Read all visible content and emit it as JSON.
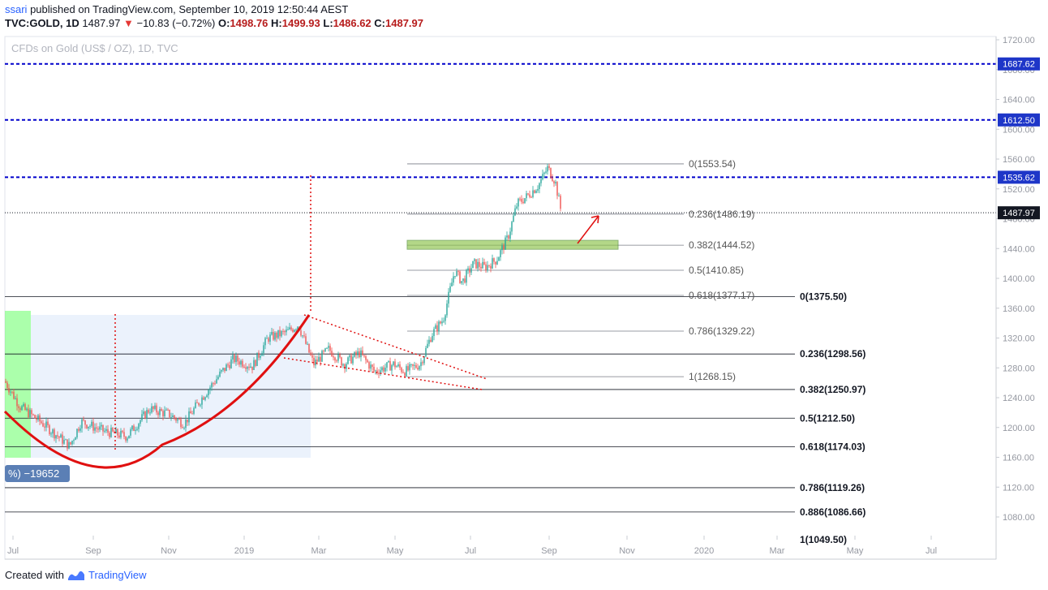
{
  "header": {
    "user": "ssari",
    "published": " published on TradingView.com, September 10, 2019 12:50:44 AEST",
    "symbol": "TVC:GOLD, 1D",
    "last": "1487.97",
    "change": "−10.83 (−0.72%)",
    "o_label": "O:",
    "o": "1498.76",
    "h_label": "H:",
    "h": "1499.93",
    "l_label": "L:",
    "l": "1486.62",
    "c_label": "C:",
    "c": "1487.97"
  },
  "footer": {
    "text": "Created with",
    "brand": "TradingView"
  },
  "chart_data": {
    "type": "candlestick",
    "watermark": "CFDs on Gold (US$ / OZ), 1D, TVC",
    "ylim": [
      1045,
      1727
    ],
    "y_ticks": [
      "1720.00",
      "1680.00",
      "1640.00",
      "1600.00",
      "1560.00",
      "1520.00",
      "1480.00",
      "1440.00",
      "1400.00",
      "1360.00",
      "1320.00",
      "1280.00",
      "1240.00",
      "1200.00",
      "1160.00",
      "1120.00",
      "1080.00"
    ],
    "x_ticks": [
      "Jul",
      "Sep",
      "Nov",
      "2019",
      "Mar",
      "May",
      "Jul",
      "Sep",
      "Nov",
      "2020",
      "Mar",
      "May",
      "Jul"
    ],
    "horizontal_levels": [
      {
        "price": 1687.62,
        "label": "1687.62",
        "style": "dashed-blue"
      },
      {
        "price": 1612.5,
        "label": "1612.50",
        "style": "dashed-blue"
      },
      {
        "price": 1535.62,
        "label": "1535.62",
        "style": "dashed-blue"
      },
      {
        "price": 1487.97,
        "label": "1487.97",
        "style": "dotted-black"
      }
    ],
    "fib_short": [
      {
        "label": "0(1553.54)",
        "price": 1553.54
      },
      {
        "label": "0.236(1486.19)",
        "price": 1486.19
      },
      {
        "label": "0.382(1444.52)",
        "price": 1444.52
      },
      {
        "label": "0.5(1410.85)",
        "price": 1410.85
      },
      {
        "label": "0.618(1377.17)",
        "price": 1377.17
      },
      {
        "label": "0.786(1329.22)",
        "price": 1329.22
      },
      {
        "label": "1(1268.15)",
        "price": 1268.15
      }
    ],
    "fib_long": [
      {
        "label": "0(1375.50)",
        "price": 1375.5
      },
      {
        "label": "0.236(1298.56)",
        "price": 1298.56
      },
      {
        "label": "0.382(1250.97)",
        "price": 1250.97
      },
      {
        "label": "0.5(1212.50)",
        "price": 1212.5
      },
      {
        "label": "0.618(1174.03)",
        "price": 1174.03
      },
      {
        "label": "0.786(1119.26)",
        "price": 1119.26
      },
      {
        "label": "0.886(1086.66)",
        "price": 1086.66
      }
    ],
    "fib_partial_label": "1(1049.50)",
    "range_badge": "%) −19652",
    "support_zone": [
      1439,
      1451
    ],
    "series": [
      {
        "x": 0.0,
        "close": 1262
      },
      {
        "x": 0.02,
        "close": 1228
      },
      {
        "x": 0.05,
        "close": 1205
      },
      {
        "x": 0.085,
        "close": 1175
      },
      {
        "x": 0.1,
        "close": 1208
      },
      {
        "x": 0.13,
        "close": 1195
      },
      {
        "x": 0.16,
        "close": 1188
      },
      {
        "x": 0.19,
        "close": 1225
      },
      {
        "x": 0.215,
        "close": 1218
      },
      {
        "x": 0.235,
        "close": 1205
      },
      {
        "x": 0.26,
        "close": 1242
      },
      {
        "x": 0.285,
        "close": 1275
      },
      {
        "x": 0.3,
        "close": 1292
      },
      {
        "x": 0.325,
        "close": 1282
      },
      {
        "x": 0.345,
        "close": 1320
      },
      {
        "x": 0.37,
        "close": 1328
      },
      {
        "x": 0.385,
        "close": 1338
      },
      {
        "x": 0.405,
        "close": 1285
      },
      {
        "x": 0.425,
        "close": 1305
      },
      {
        "x": 0.445,
        "close": 1285
      },
      {
        "x": 0.465,
        "close": 1300
      },
      {
        "x": 0.485,
        "close": 1275
      },
      {
        "x": 0.51,
        "close": 1285
      },
      {
        "x": 0.525,
        "close": 1275
      },
      {
        "x": 0.545,
        "close": 1285
      },
      {
        "x": 0.56,
        "close": 1325
      },
      {
        "x": 0.575,
        "close": 1345
      },
      {
        "x": 0.59,
        "close": 1410
      },
      {
        "x": 0.6,
        "close": 1395
      },
      {
        "x": 0.615,
        "close": 1420
      },
      {
        "x": 0.63,
        "close": 1415
      },
      {
        "x": 0.645,
        "close": 1425
      },
      {
        "x": 0.66,
        "close": 1455
      },
      {
        "x": 0.672,
        "close": 1500
      },
      {
        "x": 0.685,
        "close": 1510
      },
      {
        "x": 0.7,
        "close": 1525
      },
      {
        "x": 0.712,
        "close": 1548
      },
      {
        "x": 0.722,
        "close": 1530
      },
      {
        "x": 0.73,
        "close": 1488
      }
    ],
    "colors": {
      "up": "#26a69a",
      "down": "#ef5350",
      "accent_blue": "#0000cc",
      "arc": "#e01010",
      "zone": "#8bc34a",
      "highlight": "#66ff66"
    }
  }
}
